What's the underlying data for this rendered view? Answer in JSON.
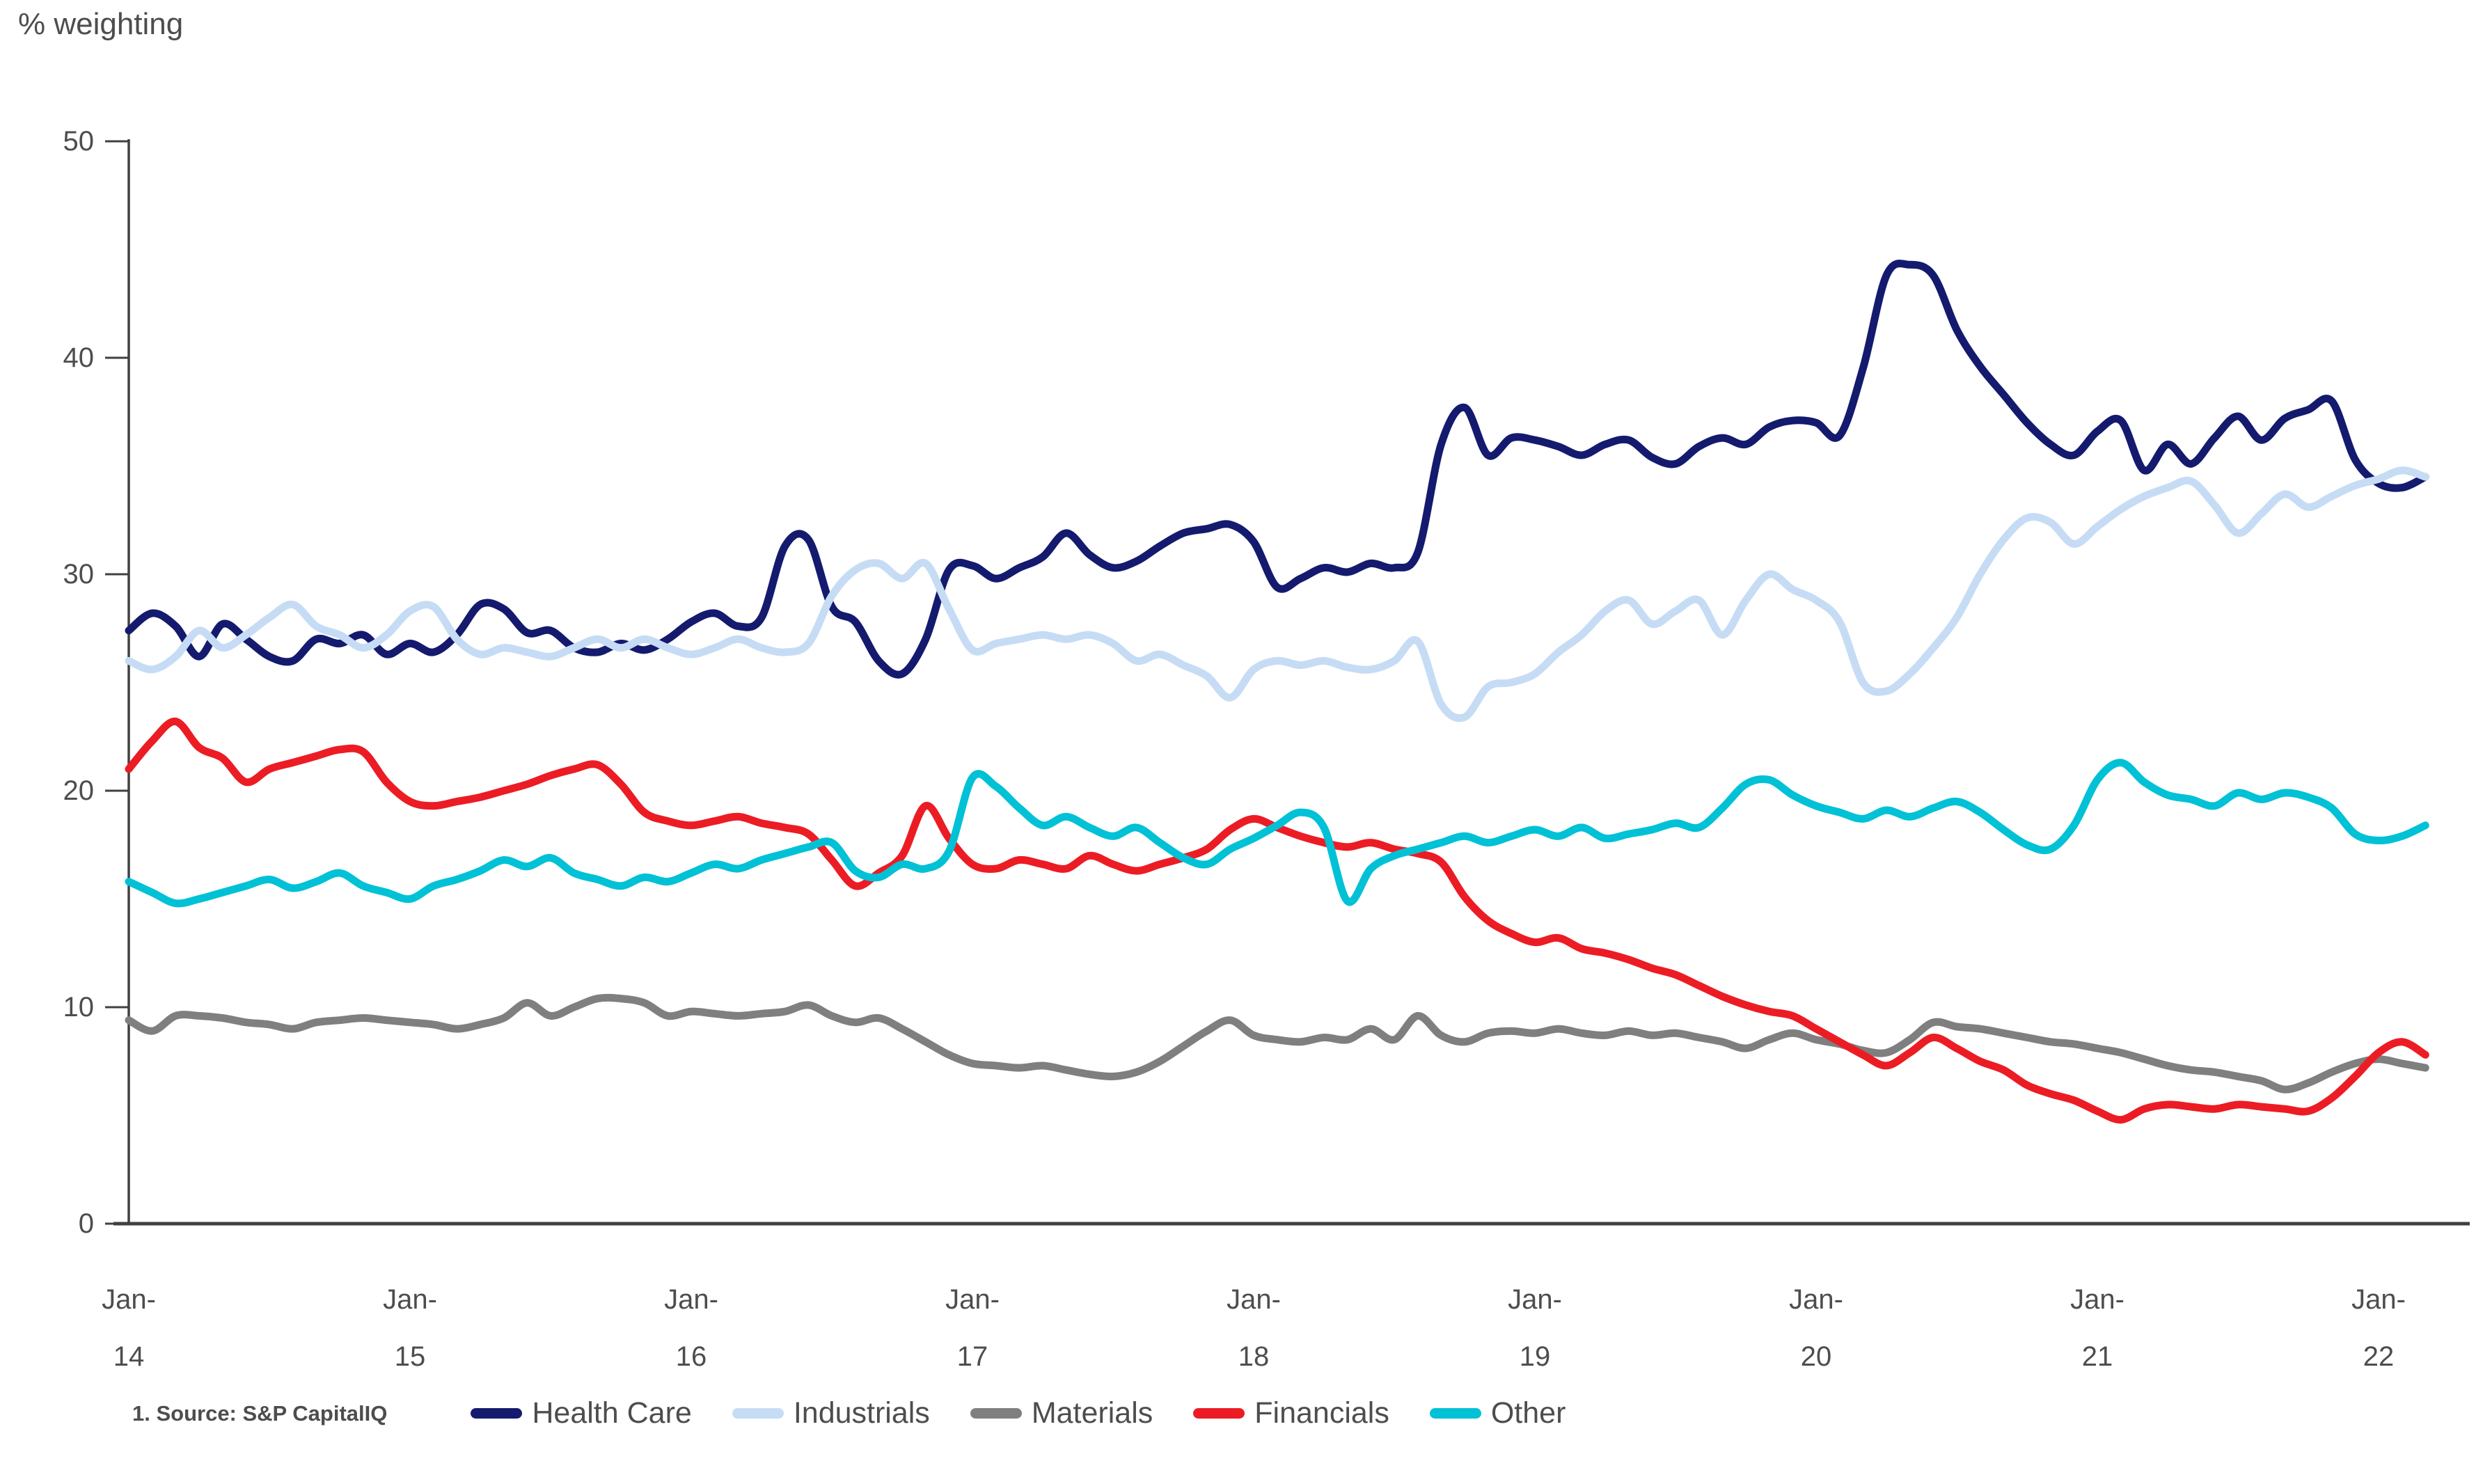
{
  "title": "% weighting",
  "source_note": "1. Source: S&P CapitalIQ",
  "axis_color": "#404040",
  "label_color": "#4d4d4d",
  "chart_data": {
    "type": "line",
    "title": "% weighting",
    "xlabel": "",
    "ylabel": "% weighting",
    "ylim": [
      0,
      50
    ],
    "yticks": [
      0,
      10,
      20,
      30,
      40,
      50
    ],
    "grid": false,
    "legend_position": "bottom",
    "x_unit": "month",
    "x_range": [
      "Jan-2014",
      "Mar-2022"
    ],
    "x_tick_labels": [
      {
        "top": "Jan-",
        "bottom": "14"
      },
      {
        "top": "Jan-",
        "bottom": "15"
      },
      {
        "top": "Jan-",
        "bottom": "16"
      },
      {
        "top": "Jan-",
        "bottom": "17"
      },
      {
        "top": "Jan-",
        "bottom": "18"
      },
      {
        "top": "Jan-",
        "bottom": "19"
      },
      {
        "top": "Jan-",
        "bottom": "20"
      },
      {
        "top": "Jan-",
        "bottom": "21"
      },
      {
        "top": "Jan-",
        "bottom": "22"
      }
    ],
    "series": [
      {
        "name": "Health Care",
        "color": "#141a6e",
        "values": [
          27.4,
          28.2,
          27.6,
          26.2,
          27.7,
          27.0,
          26.2,
          26.0,
          27.0,
          26.8,
          27.2,
          26.3,
          26.8,
          26.4,
          27.2,
          28.6,
          28.4,
          27.3,
          27.4,
          26.6,
          26.4,
          26.8,
          26.5,
          27.0,
          27.8,
          28.2,
          27.6,
          28.0,
          31.3,
          31.6,
          28.5,
          27.8,
          26.0,
          25.4,
          27.0,
          30.2,
          30.4,
          29.8,
          30.3,
          30.8,
          31.9,
          30.9,
          30.3,
          30.6,
          31.3,
          31.9,
          32.1,
          32.3,
          31.5,
          29.4,
          29.8,
          30.3,
          30.1,
          30.5,
          30.3,
          31.0,
          36.0,
          37.7,
          35.5,
          36.3,
          36.2,
          35.9,
          35.5,
          36.0,
          36.2,
          35.4,
          35.1,
          35.9,
          36.3,
          36.0,
          36.8,
          37.1,
          37.0,
          36.4,
          39.5,
          43.8,
          44.3,
          43.8,
          41.3,
          39.6,
          38.3,
          37.0,
          36.0,
          35.5,
          36.6,
          37.1,
          34.8,
          36.0,
          35.1,
          36.3,
          37.3,
          36.2,
          37.2,
          37.6,
          38.0,
          35.3,
          34.2,
          34.0,
          34.5
        ]
      },
      {
        "name": "Industrials",
        "color": "#c6dcf5",
        "values": [
          26.0,
          25.6,
          26.2,
          27.4,
          26.6,
          27.2,
          28.0,
          28.6,
          27.6,
          27.2,
          26.6,
          27.2,
          28.3,
          28.5,
          27.0,
          26.3,
          26.6,
          26.4,
          26.2,
          26.6,
          27.0,
          26.6,
          27.0,
          26.6,
          26.3,
          26.6,
          27.0,
          26.6,
          26.4,
          26.8,
          29.0,
          30.2,
          30.5,
          29.8,
          30.5,
          28.4,
          26.5,
          26.8,
          27.0,
          27.2,
          27.0,
          27.2,
          26.8,
          26.0,
          26.3,
          25.8,
          25.3,
          24.3,
          25.6,
          26.0,
          25.8,
          26.0,
          25.7,
          25.6,
          26.0,
          26.9,
          24.0,
          23.4,
          24.8,
          25.0,
          25.4,
          26.4,
          27.2,
          28.3,
          28.8,
          27.7,
          28.3,
          28.8,
          27.2,
          28.8,
          30.0,
          29.3,
          28.8,
          27.8,
          25.0,
          24.6,
          25.4,
          26.6,
          28.0,
          30.0,
          31.6,
          32.6,
          32.4,
          31.4,
          32.2,
          33.0,
          33.6,
          34.0,
          34.3,
          33.2,
          31.9,
          32.8,
          33.7,
          33.1,
          33.6,
          34.1,
          34.4,
          34.8,
          34.5
        ]
      },
      {
        "name": "Materials",
        "color": "#7f7f7f",
        "values": [
          9.4,
          8.9,
          9.6,
          9.6,
          9.5,
          9.3,
          9.2,
          9.0,
          9.3,
          9.4,
          9.5,
          9.4,
          9.3,
          9.2,
          9.0,
          9.2,
          9.5,
          10.2,
          9.6,
          10.0,
          10.4,
          10.4,
          10.2,
          9.6,
          9.8,
          9.7,
          9.6,
          9.7,
          9.8,
          10.1,
          9.6,
          9.3,
          9.5,
          9.0,
          8.4,
          7.8,
          7.4,
          7.3,
          7.2,
          7.3,
          7.1,
          6.9,
          6.8,
          7.0,
          7.5,
          8.2,
          8.9,
          9.4,
          8.7,
          8.5,
          8.4,
          8.6,
          8.5,
          9.0,
          8.5,
          9.6,
          8.7,
          8.4,
          8.8,
          8.9,
          8.8,
          9.0,
          8.8,
          8.7,
          8.9,
          8.7,
          8.8,
          8.6,
          8.4,
          8.1,
          8.5,
          8.8,
          8.5,
          8.3,
          8.0,
          7.9,
          8.5,
          9.3,
          9.1,
          9.0,
          8.8,
          8.6,
          8.4,
          8.3,
          8.1,
          7.9,
          7.6,
          7.3,
          7.1,
          7.0,
          6.8,
          6.6,
          6.2,
          6.5,
          7.0,
          7.4,
          7.6,
          7.4,
          7.2
        ]
      },
      {
        "name": "Financials",
        "color": "#ec1c24",
        "values": [
          21.0,
          22.3,
          23.2,
          22.0,
          21.5,
          20.4,
          21.0,
          21.3,
          21.6,
          21.9,
          21.8,
          20.4,
          19.5,
          19.3,
          19.5,
          19.7,
          20.0,
          20.3,
          20.7,
          21.0,
          21.2,
          20.3,
          19.0,
          18.6,
          18.4,
          18.6,
          18.8,
          18.5,
          18.3,
          18.0,
          16.8,
          15.6,
          16.2,
          17.0,
          19.3,
          17.8,
          16.6,
          16.4,
          16.8,
          16.6,
          16.4,
          17.0,
          16.6,
          16.3,
          16.6,
          16.9,
          17.3,
          18.2,
          18.7,
          18.3,
          17.9,
          17.6,
          17.4,
          17.6,
          17.3,
          17.1,
          16.7,
          15.1,
          14.0,
          13.4,
          13.0,
          13.2,
          12.7,
          12.5,
          12.2,
          11.8,
          11.5,
          11.0,
          10.5,
          10.1,
          9.8,
          9.6,
          9.0,
          8.4,
          7.8,
          7.3,
          7.9,
          8.6,
          8.1,
          7.5,
          7.1,
          6.4,
          6.0,
          5.7,
          5.2,
          4.8,
          5.3,
          5.5,
          5.4,
          5.3,
          5.5,
          5.4,
          5.3,
          5.2,
          5.8,
          6.8,
          7.9,
          8.4,
          7.8
        ]
      },
      {
        "name": "Other",
        "color": "#00c1d5",
        "values": [
          15.8,
          15.3,
          14.8,
          15.0,
          15.3,
          15.6,
          15.9,
          15.5,
          15.8,
          16.2,
          15.6,
          15.3,
          15.0,
          15.6,
          15.9,
          16.3,
          16.8,
          16.5,
          16.9,
          16.2,
          15.9,
          15.6,
          16.0,
          15.8,
          16.2,
          16.6,
          16.4,
          16.8,
          17.1,
          17.4,
          17.6,
          16.3,
          16.0,
          16.6,
          16.4,
          17.2,
          20.6,
          20.2,
          19.2,
          18.4,
          18.8,
          18.3,
          17.9,
          18.3,
          17.6,
          16.9,
          16.6,
          17.3,
          17.8,
          18.4,
          19.0,
          18.3,
          14.9,
          16.4,
          17.0,
          17.3,
          17.6,
          17.9,
          17.6,
          17.9,
          18.2,
          17.9,
          18.3,
          17.8,
          18.0,
          18.2,
          18.5,
          18.3,
          19.2,
          20.3,
          20.5,
          19.8,
          19.3,
          19.0,
          18.7,
          19.1,
          18.8,
          19.2,
          19.5,
          19.0,
          18.2,
          17.5,
          17.3,
          18.4,
          20.5,
          21.3,
          20.4,
          19.8,
          19.6,
          19.3,
          19.9,
          19.6,
          19.9,
          19.7,
          19.2,
          18.0,
          17.7,
          17.9,
          18.4
        ]
      }
    ]
  }
}
